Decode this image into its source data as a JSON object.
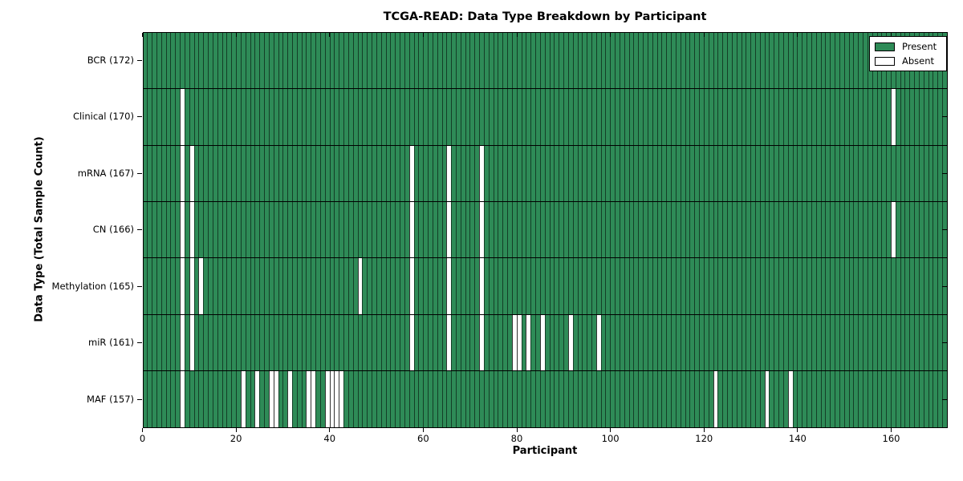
{
  "title": "TCGA-READ: Data Type Breakdown by Participant",
  "chart_data": {
    "type": "heatmap",
    "title": "TCGA-READ: Data Type Breakdown by Participant",
    "xlabel": "Participant",
    "ylabel": "Data Type (Total Sample Count)",
    "x_range": [
      0,
      172
    ],
    "x_ticks": [
      0,
      20,
      40,
      60,
      80,
      100,
      120,
      140,
      160
    ],
    "n_participants": 172,
    "legend_labels": [
      "Present",
      "Absent"
    ],
    "legend_position": "upper right",
    "cell_states": {
      "present": "green filled cell",
      "absent": "white cell"
    },
    "colors": {
      "present": "#2E8B57",
      "absent": "#FFFFFF",
      "cell_border": "rgba(0,0,0,0.55)",
      "row_separator": "#000000",
      "spine": "#000000",
      "text": "#000000",
      "background": "#FFFFFF"
    },
    "rows": [
      {
        "label": "BCR (172)",
        "data_type": "BCR",
        "present_count": 172,
        "absent_participants": []
      },
      {
        "label": "Clinical (170)",
        "data_type": "Clinical",
        "present_count": 170,
        "absent_participants": [
          8,
          160
        ]
      },
      {
        "label": "mRNA (167)",
        "data_type": "mRNA",
        "present_count": 167,
        "absent_participants": [
          8,
          10,
          57,
          65,
          72
        ]
      },
      {
        "label": "CN (166)",
        "data_type": "CN",
        "present_count": 166,
        "absent_participants": [
          8,
          10,
          57,
          65,
          72,
          160
        ]
      },
      {
        "label": "Methylation (165)",
        "data_type": "Methylation",
        "present_count": 165,
        "absent_participants": [
          8,
          10,
          12,
          46,
          57,
          65,
          72
        ]
      },
      {
        "label": "miR (161)",
        "data_type": "miR",
        "present_count": 161,
        "absent_participants": [
          8,
          10,
          57,
          65,
          72,
          79,
          80,
          82,
          85,
          91,
          97
        ]
      },
      {
        "label": "MAF (157)",
        "data_type": "MAF",
        "present_count": 157,
        "absent_participants": [
          8,
          21,
          24,
          27,
          28,
          31,
          35,
          36,
          39,
          40,
          41,
          42,
          122,
          133,
          138
        ]
      }
    ]
  }
}
